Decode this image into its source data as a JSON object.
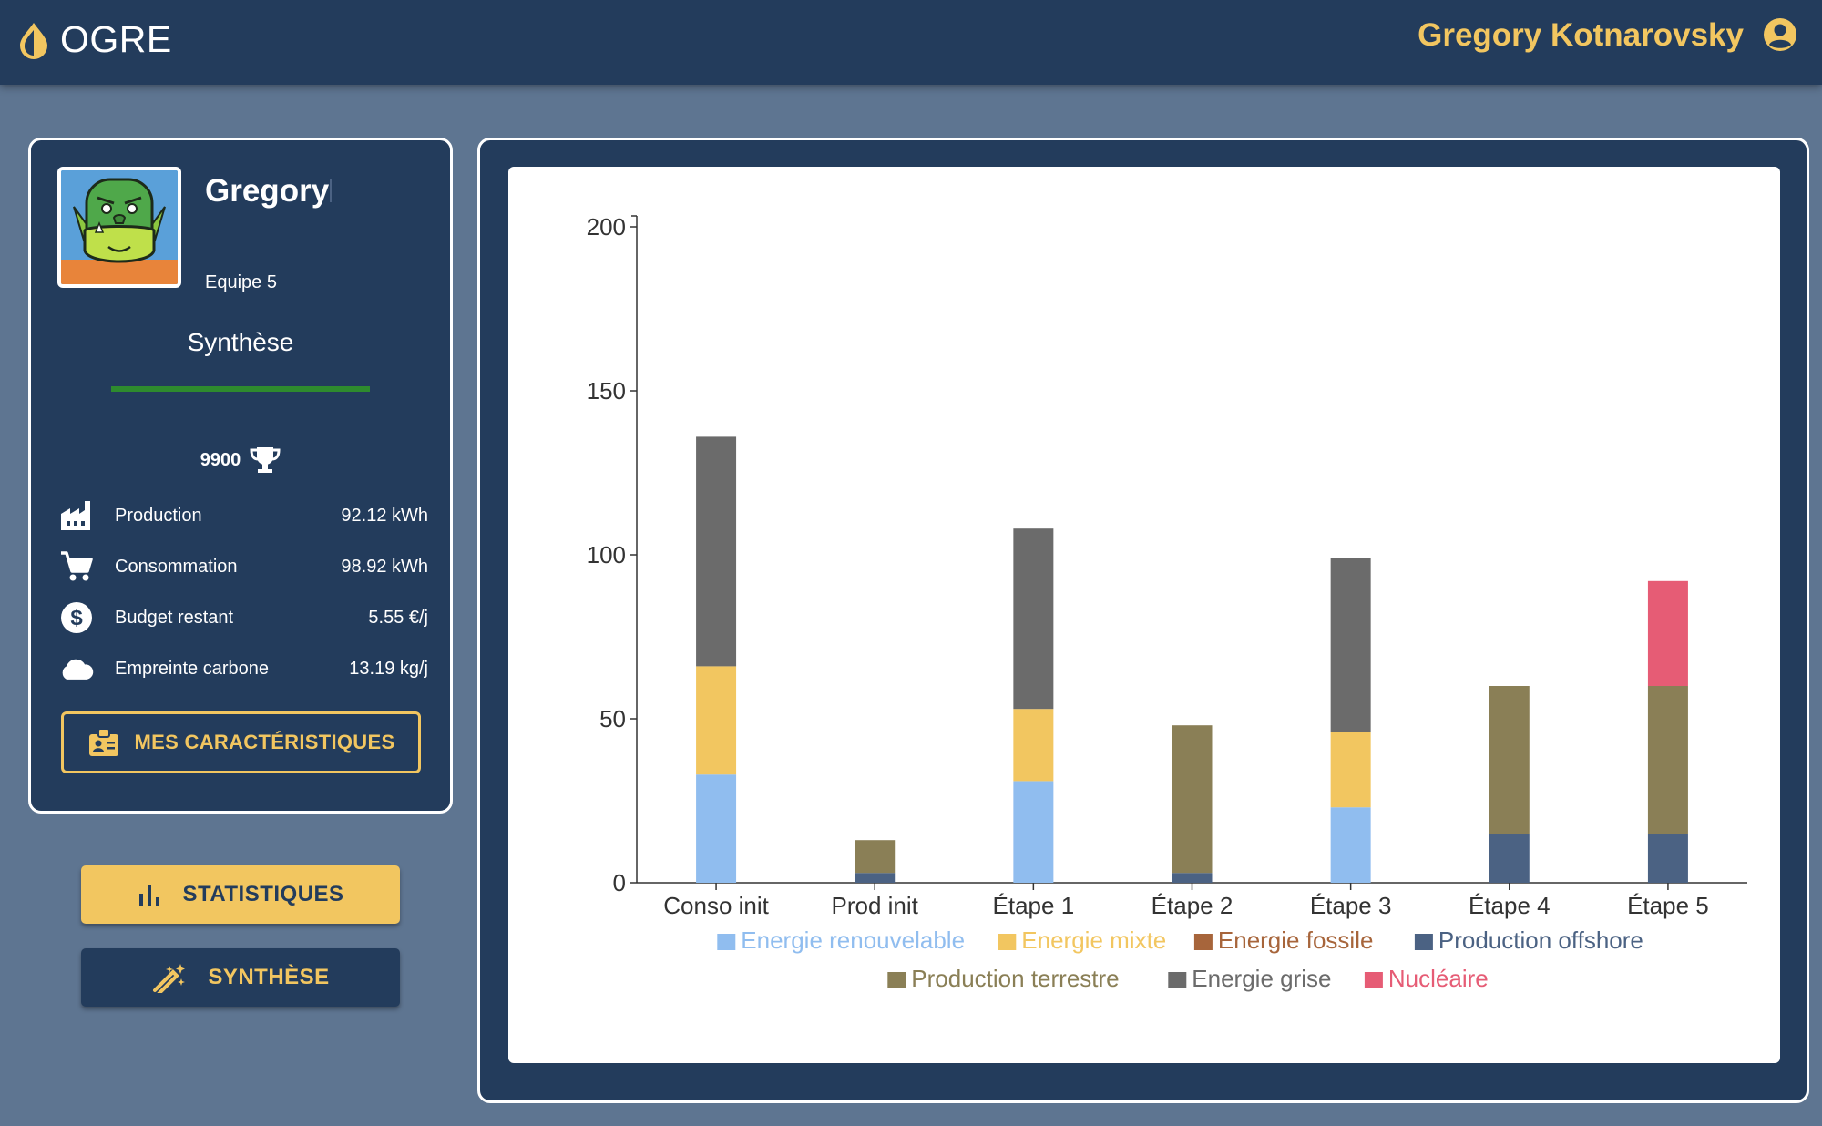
{
  "header": {
    "app_name": "OGRE",
    "user_name": "Gregory Kotnarovsky",
    "logo_icon": "drop-icon",
    "user_icon": "account-circle-icon"
  },
  "player": {
    "name": "Gregory",
    "team": "Equipe 5",
    "section_title": "Synthèse",
    "progress_fraction": 1.0,
    "score": "9900",
    "score_icon": "trophy-icon",
    "stats": [
      {
        "icon": "factory-icon",
        "label": "Production",
        "value": "92.12 kWh"
      },
      {
        "icon": "cart-icon",
        "label": "Consommation",
        "value": "98.92 kWh"
      },
      {
        "icon": "dollar-icon",
        "label": "Budget restant",
        "value": "5.55 €/j"
      },
      {
        "icon": "cloud-icon",
        "label": "Empreinte carbone",
        "value": "13.19 kg/j"
      }
    ],
    "characteristics_button": "MES CARACTÉRISTIQUES"
  },
  "nav": {
    "stats_button": "STATISTIQUES",
    "synthesis_button": "SYNTHÈSE"
  },
  "colors": {
    "navy": "#233c5c",
    "gold": "#f2c660",
    "background": "#5e7591"
  },
  "chart_data": {
    "type": "bar",
    "stacked": true,
    "categories": [
      "Conso init",
      "Prod init",
      "Étape 1",
      "Étape 2",
      "Étape 3",
      "Étape 4",
      "Étape 5"
    ],
    "ylim": [
      0,
      200
    ],
    "yticks": [
      0,
      50,
      100,
      150,
      200
    ],
    "grid": false,
    "legend_position": "bottom",
    "series": [
      {
        "name": "Energie renouvelable",
        "color": "#90bdef",
        "values": [
          33,
          0,
          31,
          0,
          23,
          0,
          0
        ]
      },
      {
        "name": "Energie mixte",
        "color": "#f2c660",
        "values": [
          33,
          0,
          22,
          0,
          23,
          0,
          0
        ]
      },
      {
        "name": "Energie fossile",
        "color": "#a7653b",
        "values": [
          0,
          0,
          0,
          0,
          0,
          0,
          0
        ]
      },
      {
        "name": "Production offshore",
        "color": "#4b6283",
        "values": [
          0,
          3,
          0,
          3,
          0,
          15,
          15
        ]
      },
      {
        "name": "Production terrestre",
        "color": "#8a7f56",
        "values": [
          0,
          10,
          0,
          45,
          0,
          45,
          45
        ]
      },
      {
        "name": "Energie grise",
        "color": "#6b6b6b",
        "values": [
          70,
          0,
          55,
          0,
          53,
          0,
          0
        ]
      },
      {
        "name": "Nucléaire",
        "color": "#e65c75",
        "values": [
          0,
          0,
          0,
          0,
          0,
          0,
          32
        ]
      }
    ]
  }
}
